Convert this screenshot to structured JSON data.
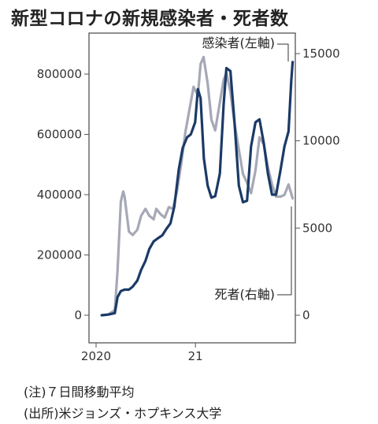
{
  "chart_data": {
    "type": "line",
    "title": "新型コロナの新規感染者・死者数",
    "x_ticks": [
      "2020",
      "21"
    ],
    "y_left": {
      "ticks": [
        0,
        200000,
        400000,
        600000,
        800000
      ],
      "tick_labels": [
        "0",
        "200000",
        "400000",
        "600000",
        "800000"
      ],
      "range": [
        0,
        900000
      ]
    },
    "y_right": {
      "ticks": [
        0,
        5000,
        10000,
        15000
      ],
      "tick_labels": [
        "0",
        "5000",
        "10000",
        "15000"
      ],
      "range": [
        0,
        15000
      ]
    },
    "series": [
      {
        "name": "感染者(左軸)",
        "axis": "left",
        "color": "#1b3a66",
        "x": [
          "2020-01-22",
          "2020-02-15",
          "2020-03-10",
          "2020-03-20",
          "2020-04-01",
          "2020-04-15",
          "2020-05-01",
          "2020-05-15",
          "2020-06-01",
          "2020-06-15",
          "2020-07-01",
          "2020-07-15",
          "2020-07-31",
          "2020-08-15",
          "2020-09-01",
          "2020-09-15",
          "2020-10-01",
          "2020-10-15",
          "2020-11-01",
          "2020-11-15",
          "2020-12-01",
          "2020-12-15",
          "2020-12-31",
          "2021-01-10",
          "2021-01-20",
          "2021-02-01",
          "2021-02-15",
          "2021-03-01",
          "2021-03-15",
          "2021-04-01",
          "2021-04-15",
          "2021-04-25",
          "2021-05-10",
          "2021-05-25",
          "2021-06-10",
          "2021-06-25",
          "2021-07-10",
          "2021-07-25",
          "2021-08-10",
          "2021-08-25",
          "2021-09-10",
          "2021-09-25",
          "2021-10-10",
          "2021-10-25",
          "2021-11-10",
          "2021-11-25",
          "2021-12-10",
          "2021-12-20",
          "2021-12-25"
        ],
        "values": [
          0,
          2000,
          7000,
          60000,
          80000,
          85000,
          85000,
          95000,
          115000,
          150000,
          180000,
          220000,
          245000,
          255000,
          265000,
          285000,
          305000,
          360000,
          485000,
          555000,
          590000,
          600000,
          640000,
          750000,
          720000,
          520000,
          430000,
          390000,
          395000,
          470000,
          700000,
          820000,
          810000,
          640000,
          430000,
          375000,
          380000,
          560000,
          640000,
          650000,
          570000,
          470000,
          400000,
          400000,
          480000,
          560000,
          610000,
          780000,
          840000
        ]
      },
      {
        "name": "死者(右軸)",
        "axis": "right",
        "color": "#a6a8b6",
        "x": [
          "2020-01-22",
          "2020-02-15",
          "2020-03-10",
          "2020-03-20",
          "2020-04-01",
          "2020-04-10",
          "2020-04-15",
          "2020-05-01",
          "2020-05-15",
          "2020-06-01",
          "2020-06-15",
          "2020-07-01",
          "2020-07-15",
          "2020-07-31",
          "2020-08-10",
          "2020-08-25",
          "2020-09-10",
          "2020-09-25",
          "2020-10-10",
          "2020-10-25",
          "2020-11-10",
          "2020-11-25",
          "2020-12-10",
          "2020-12-25",
          "2021-01-10",
          "2021-01-20",
          "2021-01-31",
          "2021-02-15",
          "2021-03-01",
          "2021-03-15",
          "2021-04-01",
          "2021-04-15",
          "2021-04-25",
          "2021-05-10",
          "2021-05-25",
          "2021-06-10",
          "2021-06-25",
          "2021-07-10",
          "2021-07-25",
          "2021-08-10",
          "2021-08-25",
          "2021-09-10",
          "2021-09-25",
          "2021-10-10",
          "2021-10-25",
          "2021-11-10",
          "2021-11-25",
          "2021-12-10",
          "2021-12-25"
        ],
        "values": [
          0,
          50,
          300,
          2500,
          6500,
          7100,
          6800,
          4800,
          4600,
          4900,
          5700,
          6100,
          5700,
          5500,
          6100,
          5800,
          5600,
          6200,
          6100,
          7100,
          8700,
          10500,
          11800,
          13100,
          12600,
          14400,
          14800,
          13300,
          11200,
          10600,
          12200,
          13500,
          13900,
          12800,
          11000,
          9500,
          8100,
          7600,
          7000,
          8300,
          10200,
          9800,
          8500,
          7500,
          6800,
          6800,
          6900,
          7500,
          6700
        ]
      }
    ],
    "notes": [
      "(注)７日間移動平均",
      "(出所)米ジョンズ・ホプキンス大学"
    ]
  }
}
